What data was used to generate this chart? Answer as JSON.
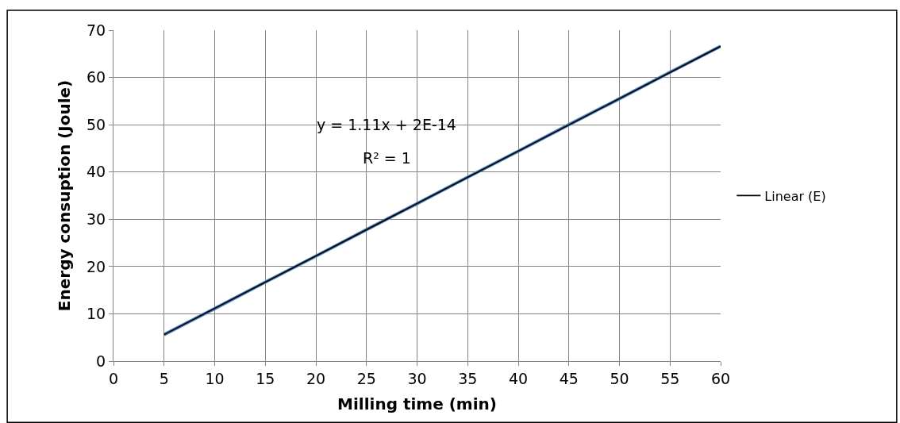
{
  "chart_data": {
    "type": "line",
    "xlabel": "Milling time (min)",
    "ylabel": "Energy consuption (Joule)",
    "annotations": [
      "y = 1.11x + 2E-14",
      "R² = 1"
    ],
    "series": [
      {
        "color": "#4f81bd",
        "x": [
          5,
          10,
          15,
          20,
          25,
          30,
          35,
          40,
          45,
          50,
          55,
          60
        ],
        "values": [
          5.6,
          11.1,
          16.7,
          22.2,
          27.8,
          33.3,
          38.9,
          44.4,
          50,
          55.5,
          61.1,
          66.6
        ]
      },
      {
        "name": "Linear (E)",
        "color": "#000000",
        "x": [
          5,
          60
        ],
        "values": [
          5.6,
          66.6
        ]
      }
    ],
    "xlim": [
      0,
      60
    ],
    "xticks": [
      0,
      5,
      10,
      15,
      20,
      25,
      30,
      35,
      40,
      45,
      50,
      55,
      60
    ],
    "ylim": [
      0,
      70
    ],
    "yticks": [
      0,
      10,
      20,
      30,
      40,
      50,
      60,
      70
    ],
    "grid": true,
    "legend": "right",
    "marker": "none",
    "line_style": "solid"
  }
}
